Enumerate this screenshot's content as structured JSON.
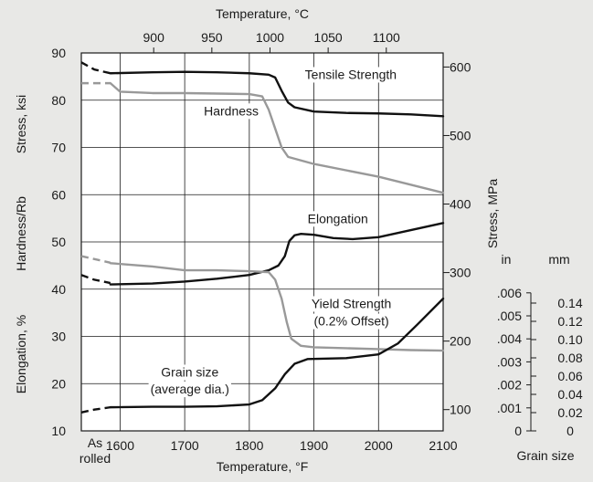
{
  "chart_data": {
    "type": "line",
    "title": "",
    "xlabel": "Temperature, °F",
    "x2label": "Temperature, °C",
    "x_start_label": "As\nrolled",
    "xlim": [
      1540,
      2100
    ],
    "x_ticks": [
      1600,
      1700,
      1800,
      1900,
      2000,
      2100
    ],
    "x2_ticks": [
      900,
      950,
      1000,
      1050,
      1100
    ],
    "ylim": [
      10,
      90
    ],
    "y_ticks": [
      10,
      20,
      30,
      40,
      50,
      60,
      70,
      80,
      90
    ],
    "y_left_labels": [
      "Stress, ksi",
      "Hardness/Rb",
      "Elongation, %"
    ],
    "y_right_label": "Stress, MPa",
    "y_right_ticks": [
      100,
      200,
      300,
      400,
      500,
      600
    ],
    "grain_axis": {
      "title": "Grain size",
      "in_label": "in",
      "mm_label": "mm",
      "in_ticks": [
        "0",
        ".001",
        ".002",
        ".003",
        ".004",
        ".005",
        ".006"
      ],
      "mm_ticks": [
        "0",
        "0.02",
        "0.04",
        "0.06",
        "0.08",
        "0.10",
        "0.12",
        "0.14"
      ]
    },
    "grid": true,
    "series": [
      {
        "name": "Tensile Strength",
        "color": "#111111",
        "x": [
          1585,
          1650,
          1700,
          1750,
          1800,
          1830,
          1840,
          1850,
          1860,
          1870,
          1900,
          1950,
          2000,
          2050,
          2100
        ],
        "y": [
          85.7,
          85.9,
          86.0,
          85.9,
          85.7,
          85.4,
          84.8,
          82.0,
          79.5,
          78.5,
          77.6,
          77.3,
          77.2,
          77.0,
          76.6
        ],
        "dashed_x": [
          1540,
          1560,
          1585
        ],
        "dashed_y": [
          88.0,
          86.5,
          85.7
        ]
      },
      {
        "name": "Hardness",
        "color": "#999999",
        "x": [
          1585,
          1600,
          1650,
          1700,
          1750,
          1800,
          1820,
          1830,
          1840,
          1850,
          1860,
          1900,
          2000,
          2100
        ],
        "y": [
          83.6,
          81.8,
          81.5,
          81.5,
          81.4,
          81.3,
          80.8,
          78.0,
          74.0,
          70.0,
          68.0,
          66.5,
          63.8,
          60.4
        ],
        "dashed_x": [
          1540,
          1585
        ],
        "dashed_y": [
          83.6,
          83.6
        ]
      },
      {
        "name": "Elongation",
        "color": "#111111",
        "x": [
          1585,
          1650,
          1700,
          1750,
          1800,
          1830,
          1845,
          1855,
          1862,
          1870,
          1880,
          1900,
          1930,
          1960,
          2000,
          2050,
          2100
        ],
        "y": [
          41.0,
          41.2,
          41.6,
          42.2,
          43.0,
          44.0,
          45.0,
          47.0,
          50.2,
          51.4,
          51.7,
          51.5,
          50.8,
          50.6,
          51.0,
          52.5,
          54.0
        ],
        "dashed_x": [
          1540,
          1560,
          1585
        ],
        "dashed_y": [
          43.0,
          42.0,
          41.3
        ]
      },
      {
        "name": "Yield Strength (0.2% Offset)",
        "color": "#999999",
        "x": [
          1585,
          1650,
          1700,
          1750,
          1800,
          1830,
          1840,
          1850,
          1858,
          1865,
          1880,
          1900,
          1950,
          2000,
          2050,
          2100
        ],
        "y": [
          45.5,
          44.8,
          44.0,
          44.0,
          43.8,
          43.6,
          42.0,
          38.0,
          33.0,
          29.5,
          28.0,
          27.7,
          27.5,
          27.3,
          27.1,
          27.0
        ],
        "dashed_x": [
          1540,
          1585
        ],
        "dashed_y": [
          47.0,
          45.6
        ]
      },
      {
        "name": "Grain size (average dia.)",
        "color": "#111111",
        "x": [
          1585,
          1650,
          1700,
          1750,
          1800,
          1820,
          1840,
          1855,
          1870,
          1890,
          1920,
          1950,
          2000,
          2030,
          2060,
          2100
        ],
        "y": [
          15.0,
          15.1,
          15.1,
          15.2,
          15.6,
          16.5,
          19.0,
          22.0,
          24.2,
          25.2,
          25.3,
          25.4,
          26.2,
          28.5,
          32.5,
          38.0
        ],
        "dashed_x": [
          1540,
          1560,
          1585
        ],
        "dashed_y": [
          13.9,
          14.5,
          15.0
        ]
      }
    ],
    "annotations": [
      {
        "text": "Tensile Strength",
        "x": 1957,
        "y": 84.5
      },
      {
        "text": "Hardness",
        "x": 1772,
        "y": 76.8
      },
      {
        "text": "Elongation",
        "x": 1937,
        "y": 54.0
      },
      {
        "text": "Yield Strength",
        "x": 1958,
        "y": 36.0
      },
      {
        "text": "(0.2% Offset)",
        "x": 1958,
        "y": 32.3
      },
      {
        "text": "Grain size",
        "x": 1708,
        "y": 21.5
      },
      {
        "text": "(average dia.)",
        "x": 1708,
        "y": 17.9
      }
    ]
  }
}
